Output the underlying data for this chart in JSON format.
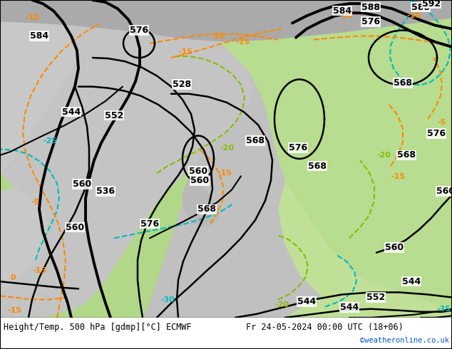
{
  "title_left": "Height/Temp. 500 hPa [gdmp][°C] ECMWF",
  "title_right": "Fr 24-05-2024 00:00 UTC (18+06)",
  "credit": "©weatheronline.co.uk",
  "bg_white": "#ffffff",
  "map_green_light": "#c8e8b0",
  "map_green_med": "#b0d890",
  "map_gray": "#b8b8b8",
  "map_gray_light": "#cccccc",
  "cyan": "#00bbbb",
  "orange": "#ff8800",
  "lime": "#88bb00",
  "black": "#000000",
  "blue": "#0055cc",
  "figsize": [
    6.34,
    4.9
  ],
  "dpi": 100
}
